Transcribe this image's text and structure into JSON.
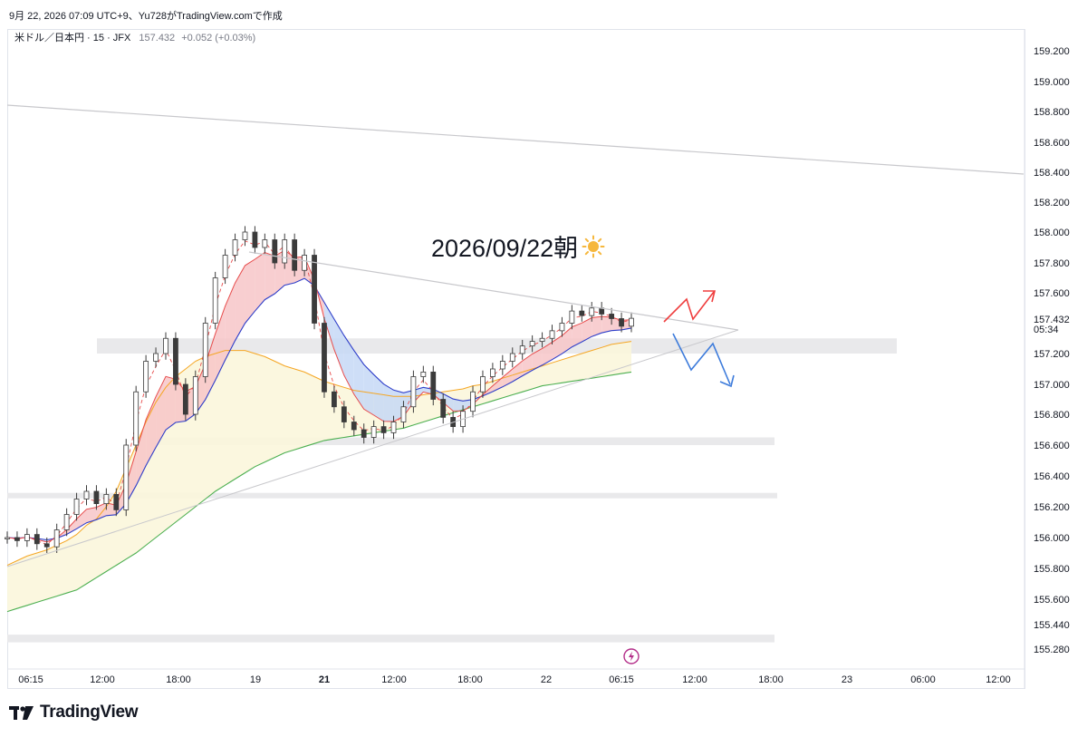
{
  "header": {
    "created_line": "9月 22, 2026 07:09 UTC+9、Yu728がTradingView.comで作成"
  },
  "symbol": {
    "name": "米ドル／日本円 · 15 · JFX",
    "last": "157.432",
    "change": "+0.052 (+0.03%)"
  },
  "annotation": {
    "text": "2026/09/22朝",
    "icon": "sun-emoji"
  },
  "countdown": "05:34",
  "brand": {
    "name": "TradingView",
    "icon": "tradingview-logo"
  },
  "colors": {
    "up_arrow": "#ef3e3e",
    "down_arrow": "#3d7bdb",
    "ema_fast_fill": "#f7c5c8",
    "ema_slow_fill": "#c6d8f6",
    "long_fill": "#fbf6dc",
    "green_ma": "#4caf50",
    "orange_ma": "#f5a623",
    "blue_ma": "#2e3ec9",
    "red_ma": "#e74c4c",
    "candle": "#3b3b3b"
  },
  "chart_data": {
    "type": "candlestick",
    "title": "",
    "y_ticks": [
      "159.200",
      "159.000",
      "158.800",
      "158.600",
      "158.400",
      "158.200",
      "158.000",
      "157.800",
      "157.600",
      "157.200",
      "157.000",
      "156.800",
      "156.600",
      "156.400",
      "156.200",
      "156.000",
      "155.800",
      "155.600",
      "155.440",
      "155.280"
    ],
    "last_price_label": "157.432",
    "x_ticks": [
      "06:15",
      "12:00",
      "18:00",
      "19",
      "21",
      "12:00",
      "18:00",
      "22",
      "06:15",
      "12:00",
      "18:00",
      "23",
      "06:00",
      "12:00"
    ],
    "ylim": [
      155.2,
      159.35
    ],
    "price_path": [
      156.0,
      155.98,
      156.02,
      155.96,
      155.94,
      156.05,
      156.15,
      156.25,
      156.3,
      156.22,
      156.28,
      156.18,
      156.6,
      156.95,
      157.15,
      157.2,
      157.3,
      157.0,
      156.8,
      157.05,
      157.4,
      157.7,
      157.85,
      157.95,
      158.0,
      157.9,
      157.95,
      157.8,
      157.95,
      157.75,
      157.85,
      157.4,
      156.95,
      156.85,
      156.75,
      156.7,
      156.65,
      156.72,
      156.68,
      156.75,
      156.85,
      157.05,
      157.08,
      156.9,
      156.78,
      156.72,
      156.82,
      156.95,
      157.05,
      157.1,
      157.15,
      157.2,
      157.25,
      157.28,
      157.3,
      157.35,
      157.4,
      157.48,
      157.45,
      157.5,
      157.46,
      157.43,
      157.38,
      157.432
    ],
    "support_zones": [
      {
        "low": 157.2,
        "high": 157.3
      },
      {
        "low": 156.6,
        "high": 156.65
      },
      {
        "low": 156.26,
        "high": 156.29
      },
      {
        "low": 155.32,
        "high": 155.37
      }
    ],
    "trendlines": [
      {
        "label": "upper-long"
      },
      {
        "label": "triangle-upper"
      },
      {
        "label": "triangle-lower"
      }
    ],
    "scenarios": [
      "up",
      "down"
    ]
  }
}
